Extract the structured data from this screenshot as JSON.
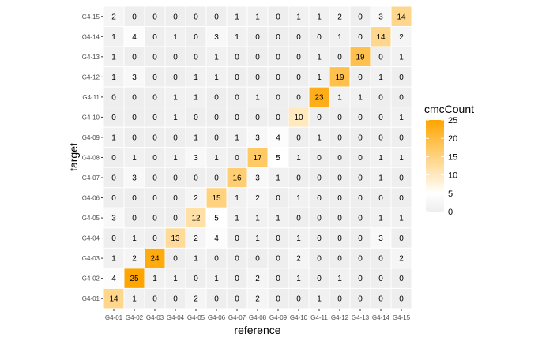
{
  "chart_data": {
    "type": "heatmap",
    "title": "",
    "xlabel": "reference",
    "ylabel": "target",
    "x_categories": [
      "G4-01",
      "G4-02",
      "G4-03",
      "G4-04",
      "G4-05",
      "G4-06",
      "G4-07",
      "G4-08",
      "G4-09",
      "G4-10",
      "G4-11",
      "G4-12",
      "G4-13",
      "G4-14",
      "G4-15"
    ],
    "y_categories": [
      "G4-01",
      "G4-02",
      "G4-03",
      "G4-04",
      "G4-05",
      "G4-06",
      "G4-07",
      "G4-08",
      "G4-09",
      "G4-10",
      "G4-11",
      "G4-12",
      "G4-13",
      "G4-14",
      "G4-15"
    ],
    "rows": [
      {
        "target": "G4-15",
        "values": [
          2,
          0,
          0,
          0,
          0,
          0,
          1,
          1,
          0,
          1,
          1,
          2,
          0,
          3,
          14
        ]
      },
      {
        "target": "G4-14",
        "values": [
          1,
          4,
          0,
          1,
          0,
          3,
          1,
          0,
          0,
          0,
          0,
          1,
          0,
          14,
          2
        ]
      },
      {
        "target": "G4-13",
        "values": [
          1,
          0,
          0,
          0,
          0,
          1,
          0,
          0,
          0,
          0,
          1,
          0,
          19,
          0,
          1
        ]
      },
      {
        "target": "G4-12",
        "values": [
          1,
          3,
          0,
          0,
          1,
          1,
          0,
          0,
          0,
          0,
          1,
          19,
          0,
          1,
          0
        ]
      },
      {
        "target": "G4-11",
        "values": [
          0,
          0,
          0,
          1,
          1,
          0,
          0,
          1,
          0,
          0,
          23,
          1,
          1,
          0,
          0
        ]
      },
      {
        "target": "G4-10",
        "values": [
          0,
          0,
          0,
          1,
          0,
          0,
          0,
          0,
          0,
          10,
          0,
          0,
          0,
          0,
          1
        ]
      },
      {
        "target": "G4-09",
        "values": [
          1,
          0,
          0,
          0,
          1,
          0,
          1,
          3,
          4,
          0,
          1,
          0,
          0,
          0,
          0
        ]
      },
      {
        "target": "G4-08",
        "values": [
          0,
          1,
          0,
          1,
          3,
          1,
          0,
          17,
          5,
          1,
          0,
          0,
          0,
          1,
          1
        ]
      },
      {
        "target": "G4-07",
        "values": [
          0,
          3,
          0,
          0,
          0,
          0,
          16,
          3,
          1,
          0,
          0,
          0,
          0,
          1,
          0
        ]
      },
      {
        "target": "G4-06",
        "values": [
          0,
          0,
          0,
          0,
          2,
          15,
          1,
          2,
          0,
          1,
          0,
          0,
          0,
          0,
          0
        ]
      },
      {
        "target": "G4-05",
        "values": [
          3,
          0,
          0,
          0,
          12,
          5,
          1,
          1,
          1,
          0,
          0,
          0,
          0,
          1,
          1
        ]
      },
      {
        "target": "G4-04",
        "values": [
          0,
          1,
          0,
          13,
          2,
          4,
          0,
          1,
          0,
          1,
          0,
          0,
          0,
          3,
          0
        ]
      },
      {
        "target": "G4-03",
        "values": [
          1,
          2,
          24,
          0,
          1,
          0,
          0,
          0,
          0,
          2,
          0,
          0,
          0,
          0,
          2
        ]
      },
      {
        "target": "G4-02",
        "values": [
          4,
          25,
          1,
          1,
          0,
          1,
          0,
          2,
          0,
          1,
          0,
          1,
          0,
          0,
          0
        ]
      },
      {
        "target": "G4-01",
        "values": [
          14,
          1,
          0,
          0,
          2,
          0,
          0,
          2,
          0,
          0,
          1,
          0,
          0,
          0,
          0
        ]
      }
    ],
    "legend": {
      "title": "cmcCount",
      "ticks": [
        25,
        20,
        15,
        10,
        5,
        0
      ],
      "placement": "right",
      "range": [
        0,
        25
      ],
      "color_low": "#eeeeee",
      "color_mid": "#ffffff",
      "color_high": "#ffa500"
    },
    "panel_background": "#ebebeb",
    "tile_border_color": "#ffffff",
    "grid": false
  }
}
